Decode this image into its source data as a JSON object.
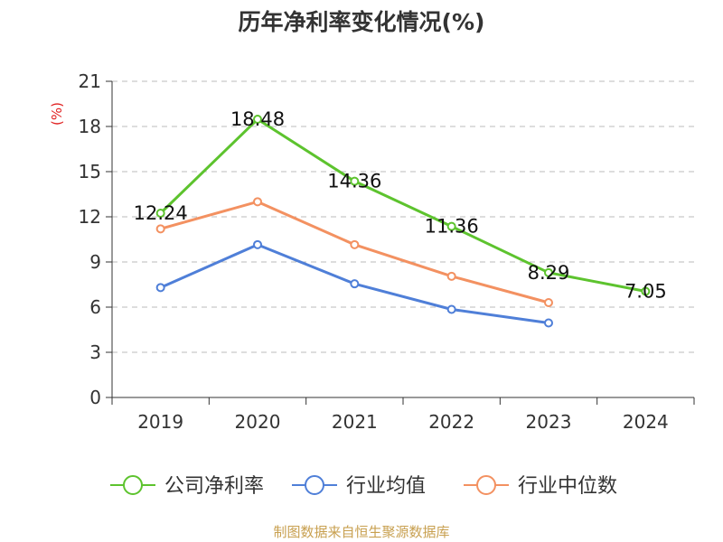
{
  "chart_data": {
    "type": "line",
    "title": "历年净利率变化情况(%)",
    "ylabel": "(%)",
    "xlabel": "",
    "categories": [
      "2019",
      "2020",
      "2021",
      "2022",
      "2023",
      "2024"
    ],
    "ylim": [
      0,
      21
    ],
    "yticks": [
      0,
      3,
      6,
      9,
      12,
      15,
      18,
      21
    ],
    "grid": true,
    "legend_position": "bottom",
    "series": [
      {
        "name": "公司净利率",
        "values": [
          12.24,
          18.48,
          14.36,
          11.36,
          8.29,
          7.05
        ],
        "labels": [
          "12.24",
          "18.48",
          "14.36",
          "11.36",
          "8.29",
          "7.05"
        ],
        "color": "#5dc32e"
      },
      {
        "name": "行业均值",
        "values": [
          7.3,
          10.15,
          7.55,
          5.85,
          4.95,
          null
        ],
        "color": "#4f7fd8"
      },
      {
        "name": "行业中位数",
        "values": [
          11.2,
          13.0,
          10.15,
          8.05,
          6.3,
          null
        ],
        "color": "#f39161"
      }
    ],
    "source": "制图数据来自恒生聚源数据库"
  },
  "colors": {
    "axis": "#333333",
    "grid": "#bbbbbb",
    "ylabel": "#e02020",
    "source": "#c8a050"
  }
}
